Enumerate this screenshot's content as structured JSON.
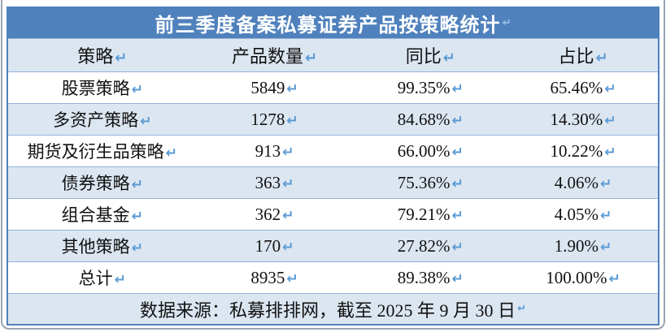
{
  "glyphs": {
    "return_mark": "↵"
  },
  "colors": {
    "accent": "#4f81bd",
    "tint": "#dce6f1",
    "sep": "#95b3d7",
    "mark": "#5b9bd5",
    "mark-on-blue": "#9cc3e8",
    "frame": "#9aa4b0",
    "ink": "#111111"
  },
  "table": {
    "title": "前三季度备案私募证券产品按策略统计",
    "columns": [
      "策略",
      "产品数量",
      "同比",
      "占比"
    ],
    "rows": [
      {
        "strategy": "股票策略",
        "count": "5849",
        "yoy": "99.35%",
        "share": "65.46%"
      },
      {
        "strategy": "多资产策略",
        "count": "1278",
        "yoy": "84.68%",
        "share": "14.30%"
      },
      {
        "strategy": "期货及衍生品策略",
        "count": "913",
        "yoy": "66.00%",
        "share": "10.22%"
      },
      {
        "strategy": "债券策略",
        "count": "363",
        "yoy": "75.36%",
        "share": "4.06%"
      },
      {
        "strategy": "组合基金",
        "count": "362",
        "yoy": "79.21%",
        "share": "4.05%"
      },
      {
        "strategy": "其他策略",
        "count": "170",
        "yoy": "27.82%",
        "share": "1.90%"
      },
      {
        "strategy": "总计",
        "count": "8935",
        "yoy": "89.38%",
        "share": "100.00%"
      }
    ],
    "footer": "数据来源：私募排排网，截至 2025 年 9 月 30 日"
  }
}
